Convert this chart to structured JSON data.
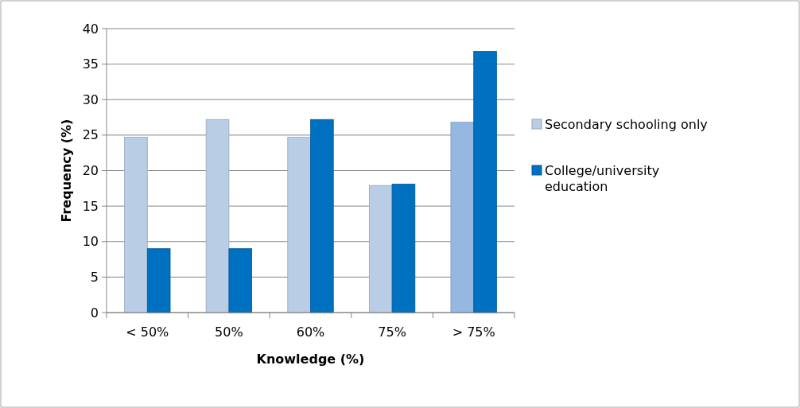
{
  "chart_data": {
    "type": "bar",
    "xlabel": "Knowledge (%)",
    "ylabel": "Frequency (%)",
    "categories": [
      "< 50%",
      "50%",
      "60%",
      "75%",
      "> 75%"
    ],
    "series": [
      {
        "name": "Secondary schooling only",
        "color": "#b9cde5",
        "colors": [
          "#b9cde5",
          "#b9cde5",
          "#b9cde5",
          "#b9cde5",
          "#95b8e3"
        ],
        "values": [
          24.7,
          27.2,
          24.7,
          17.9,
          26.8
        ]
      },
      {
        "name": "College/university education",
        "color": "#0070c0",
        "values": [
          9.0,
          9.0,
          27.2,
          18.1,
          36.8
        ]
      }
    ],
    "ylim": [
      0,
      40
    ],
    "yticks": [
      0,
      5,
      10,
      15,
      20,
      25,
      30,
      35,
      40
    ],
    "grid": "y",
    "legend": "right"
  }
}
